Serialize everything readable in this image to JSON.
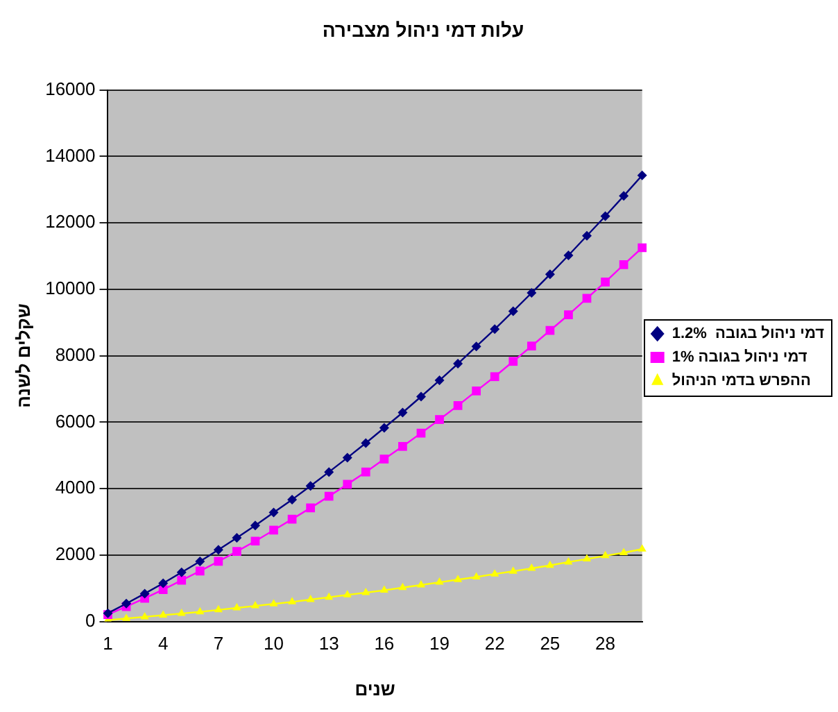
{
  "chart_data": {
    "type": "line",
    "title": "עלות דמי ניהול מצבירה",
    "xlabel": "שנים",
    "ylabel": "שקלים לשנה",
    "categories": [
      "1",
      null,
      null,
      "4",
      null,
      null,
      "7",
      null,
      null,
      "10",
      null,
      null,
      "13",
      null,
      null,
      "16",
      null,
      null,
      "19",
      null,
      null,
      "22",
      null,
      null,
      "25",
      null,
      null,
      "28",
      null,
      null
    ],
    "series": [
      {
        "name": "דמי ניהול בגובה  1.2%",
        "color": "#000080",
        "marker": "diamond",
        "values": [
          250,
          540,
          840,
          1150,
          1480,
          1810,
          2160,
          2520,
          2890,
          3280,
          3670,
          4080,
          4500,
          4930,
          5370,
          5830,
          6290,
          6770,
          7260,
          7760,
          8280,
          8800,
          9340,
          9890,
          10450,
          11020,
          11610,
          12200,
          12810,
          13430
        ]
      },
      {
        "name": "דמי ניהול בגובה 1%",
        "color": "#ff00ff",
        "marker": "square",
        "values": [
          210,
          450,
          700,
          960,
          1240,
          1520,
          1810,
          2110,
          2420,
          2750,
          3080,
          3420,
          3770,
          4130,
          4500,
          4890,
          5270,
          5670,
          6080,
          6500,
          6940,
          7370,
          7830,
          8290,
          8760,
          9230,
          9730,
          10220,
          10740,
          11250
        ]
      },
      {
        "name": "ההפרש בדמי הניהול",
        "color": "#ffff00",
        "marker": "triangle",
        "values": [
          40,
          90,
          140,
          190,
          240,
          290,
          350,
          410,
          470,
          530,
          590,
          660,
          730,
          800,
          870,
          940,
          1020,
          1100,
          1180,
          1260,
          1340,
          1430,
          1510,
          1600,
          1690,
          1790,
          1880,
          1980,
          2070,
          2180
        ]
      }
    ],
    "ylim": [
      0,
      16000
    ],
    "yticks": [
      0,
      2000,
      4000,
      6000,
      8000,
      10000,
      12000,
      14000,
      16000
    ],
    "grid": "y",
    "legend": "right",
    "line_style": "solid"
  }
}
